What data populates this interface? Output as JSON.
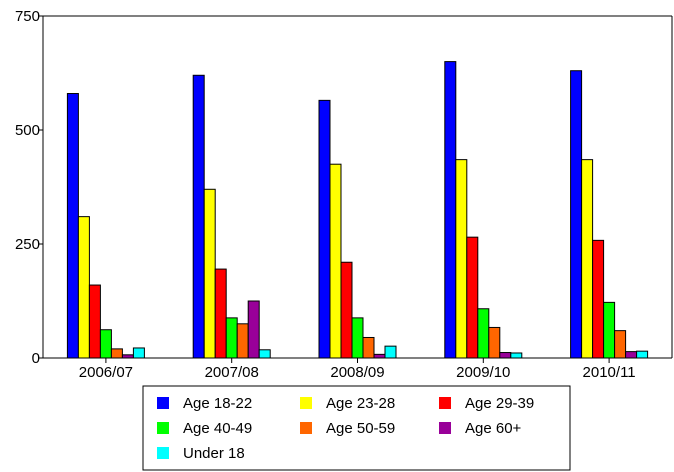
{
  "chart_data": {
    "type": "bar",
    "title": "",
    "xlabel": "",
    "ylabel": "",
    "ylim": [
      0,
      750
    ],
    "yticks": [
      0,
      250,
      500,
      750
    ],
    "grid": false,
    "legend_position": "bottom",
    "categories": [
      "2006/07",
      "2007/08",
      "2008/09",
      "2009/10",
      "2010/11"
    ],
    "series": [
      {
        "name": "Age 18-22",
        "color": "#0000ff",
        "values": [
          580,
          620,
          565,
          650,
          630
        ]
      },
      {
        "name": "Age 23-28",
        "color": "#ffff00",
        "values": [
          310,
          370,
          425,
          435,
          435
        ]
      },
      {
        "name": "Age 29-39",
        "color": "#ff0000",
        "values": [
          160,
          195,
          210,
          265,
          258
        ]
      },
      {
        "name": "Age 40-49",
        "color": "#00ff00",
        "values": [
          62,
          88,
          88,
          108,
          122
        ]
      },
      {
        "name": "Age 50-59",
        "color": "#ff6600",
        "values": [
          20,
          75,
          45,
          67,
          60
        ]
      },
      {
        "name": "Age 60+",
        "color": "#990099",
        "values": [
          7,
          125,
          8,
          12,
          14
        ]
      },
      {
        "name": "Under 18",
        "color": "#00ffff",
        "values": [
          22,
          18,
          26,
          11,
          15
        ]
      }
    ]
  }
}
